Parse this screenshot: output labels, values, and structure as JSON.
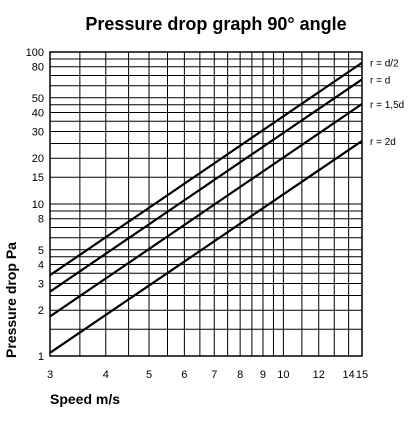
{
  "chart_data": {
    "type": "line",
    "title": "Pressure drop graph 90° angle",
    "xlabel": "Speed m/s",
    "ylabel": "Pressure drop Pa",
    "xscale": "log",
    "yscale": "log",
    "xlim": [
      3,
      15
    ],
    "ylim": [
      1,
      100
    ],
    "grid": true,
    "legend": "none",
    "x_ticks": [
      3,
      4,
      5,
      6,
      7,
      8,
      9,
      10,
      12,
      14,
      15
    ],
    "y_ticks": [
      1,
      2,
      3,
      4,
      5,
      8,
      10,
      15,
      20,
      30,
      40,
      50,
      80,
      100
    ],
    "x_grid": [
      3,
      3.5,
      4,
      4.5,
      5,
      5.5,
      6,
      6.5,
      7,
      7.5,
      8,
      8.5,
      9,
      9.5,
      10,
      11,
      12,
      13,
      14,
      15
    ],
    "y_grid": [
      1,
      1.5,
      2,
      2.5,
      3,
      3.5,
      4,
      4.5,
      5,
      6,
      7,
      8,
      9,
      10,
      15,
      20,
      25,
      30,
      35,
      40,
      45,
      50,
      60,
      70,
      80,
      90,
      100
    ],
    "series": [
      {
        "name": "r = d/2",
        "x": [
          3,
          15
        ],
        "y": [
          3.4,
          85
        ]
      },
      {
        "name": "r = d",
        "x": [
          3,
          15
        ],
        "y": [
          2.65,
          66
        ]
      },
      {
        "name": "r = 1,5d",
        "x": [
          3,
          15
        ],
        "y": [
          1.82,
          45.5
        ]
      },
      {
        "name": "r = 2d",
        "x": [
          3,
          15
        ],
        "y": [
          1.05,
          26
        ]
      }
    ],
    "line_color": "#000000",
    "grid_color": "#000000"
  }
}
